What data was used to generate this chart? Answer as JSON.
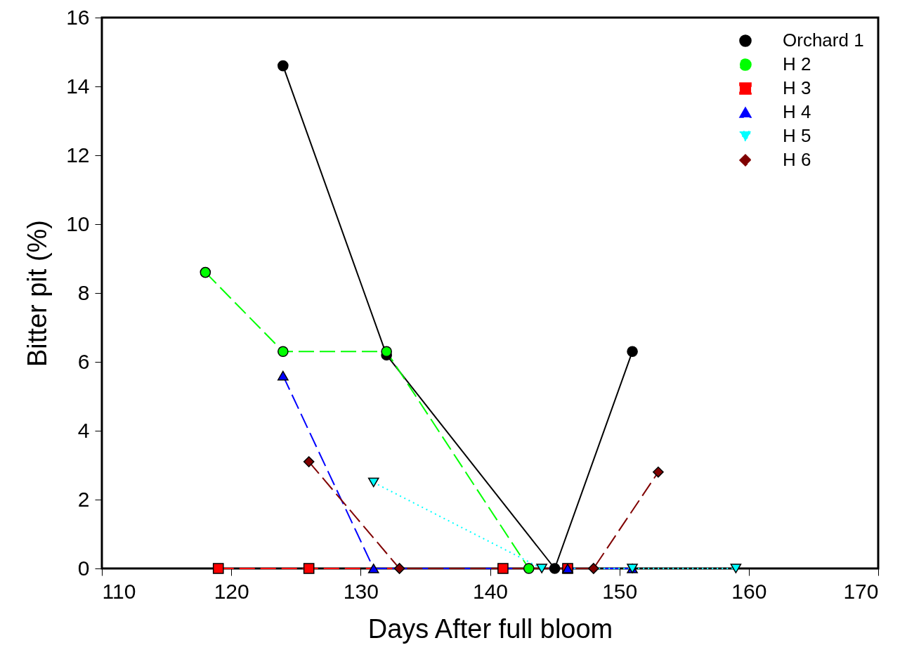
{
  "chart_data": {
    "type": "line",
    "xlabel": "Days After full bloom",
    "ylabel": "Bitter pit  (%)",
    "xlim": [
      110,
      170
    ],
    "xticks": [
      110,
      120,
      130,
      140,
      150,
      160,
      170
    ],
    "ylim": [
      0,
      16
    ],
    "yticks": [
      0,
      2,
      4,
      6,
      8,
      10,
      12,
      14,
      16
    ],
    "grid": false,
    "legend": "top right",
    "series": [
      {
        "name": "Orchard 1",
        "color": "#000000",
        "marker": "circle",
        "line_style": "solid",
        "x": [
          124,
          132,
          145,
          151
        ],
        "values": [
          14.6,
          6.2,
          0,
          6.3
        ]
      },
      {
        "name": "H 2",
        "color": "#00ff00",
        "marker": "circle",
        "line_style": "dashed",
        "x": [
          118,
          124,
          132,
          143
        ],
        "values": [
          8.6,
          6.3,
          6.3,
          0
        ]
      },
      {
        "name": "H 3",
        "color": "#ff0000",
        "marker": "square",
        "line_style": "dashed",
        "x": [
          119,
          126,
          141,
          146
        ],
        "values": [
          0,
          0,
          0,
          0
        ]
      },
      {
        "name": "H 4",
        "color": "#0000ff",
        "marker": "triangle",
        "line_style": "dashed",
        "x": [
          124,
          131,
          146,
          151
        ],
        "values": [
          5.6,
          0,
          0,
          0
        ]
      },
      {
        "name": "H 5",
        "color": "#00ffff",
        "marker": "triangle-down",
        "line_style": "dotted",
        "x": [
          131,
          144,
          151,
          159
        ],
        "values": [
          2.5,
          0,
          0,
          0
        ]
      },
      {
        "name": "H 6",
        "color": "#800000",
        "marker": "diamond",
        "line_style": "dashed",
        "x": [
          126,
          133,
          148,
          153
        ],
        "values": [
          3.1,
          0,
          0,
          2.8
        ]
      }
    ]
  }
}
